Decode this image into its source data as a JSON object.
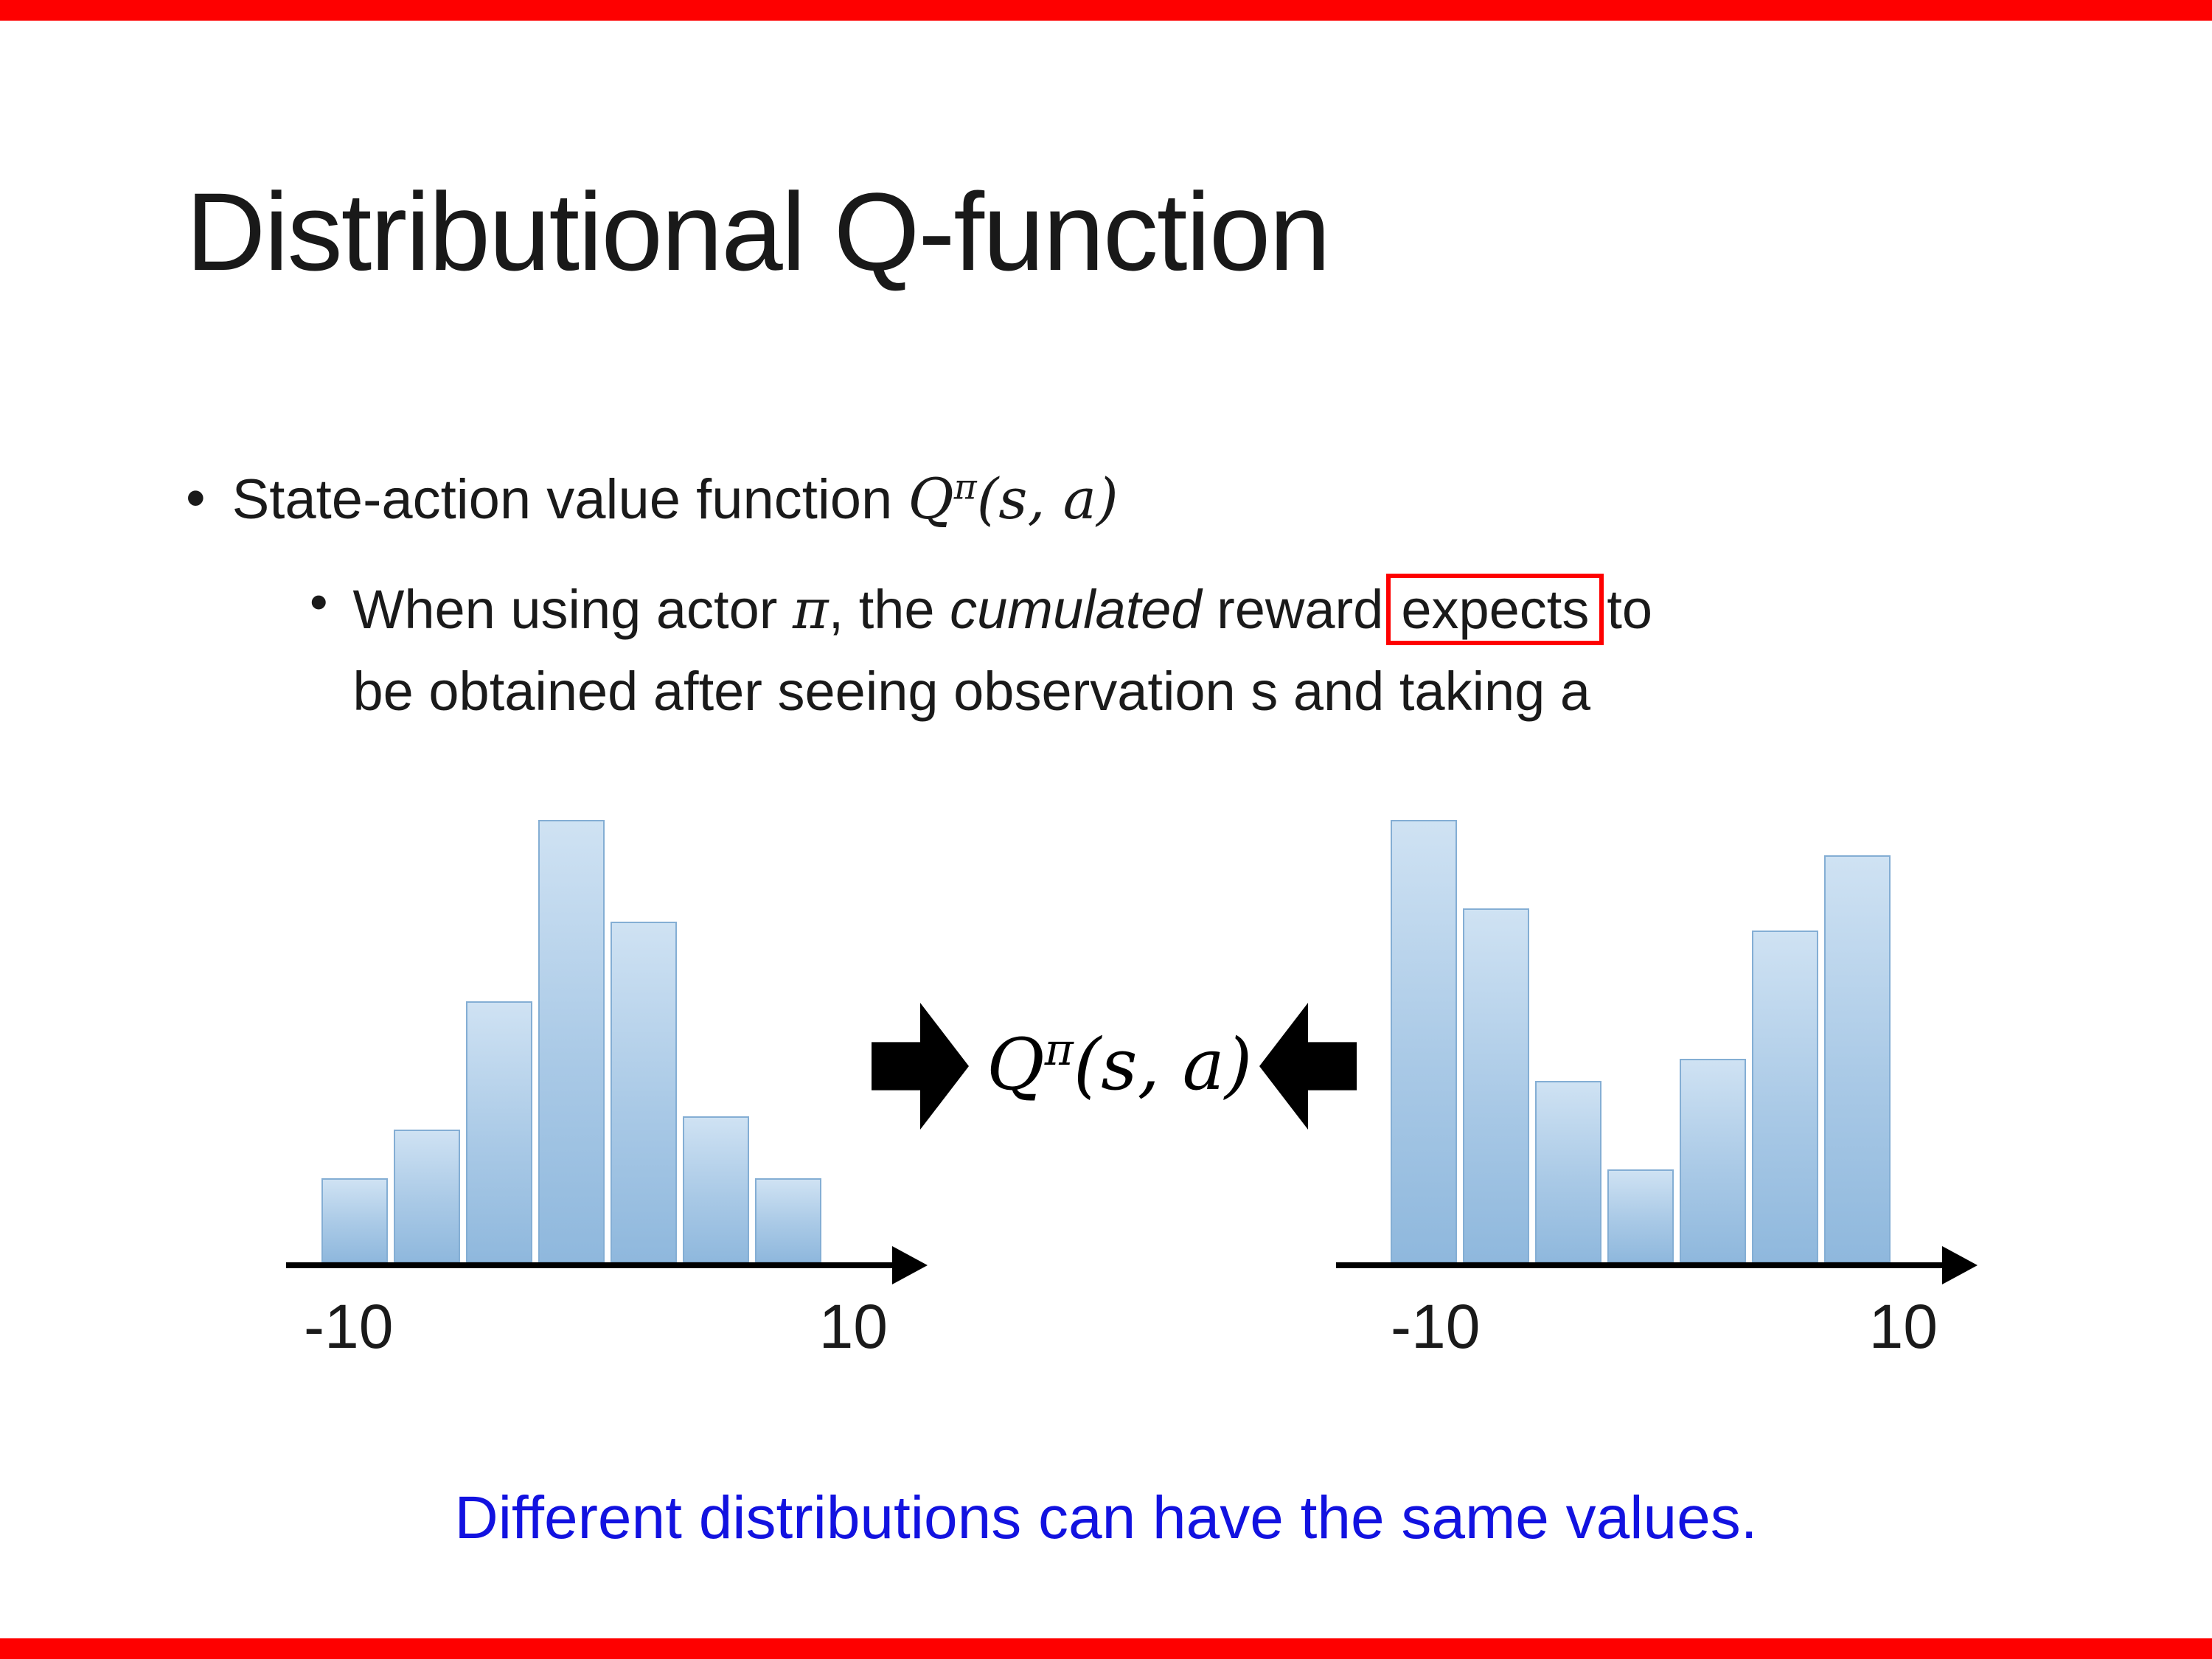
{
  "slide": {
    "title": "Distributional Q-function",
    "bullet_char": "•",
    "accent_red": "#fe0000",
    "note_blue": "#1212e0",
    "bottom_note": "Different distributions can have the same values."
  },
  "bullet1": {
    "intro": "State-action value function ",
    "formula": {
      "base": "Q",
      "sup": "π",
      "args": "(s, a)"
    }
  },
  "sub_bullet": {
    "seg1": "When using actor ",
    "pi": "π",
    "seg2": ", the ",
    "cumulated": "cumulated",
    "seg3": " reward",
    "boxed": "expects",
    "seg4": "to",
    "line2": "be obtained after seeing observation s and taking a"
  },
  "center": {
    "formula": {
      "base": "Q",
      "sup": "π",
      "args": "(s, a)"
    }
  },
  "chart_data": [
    {
      "type": "bar",
      "title": "unimodal return distribution",
      "categories": [
        "b1",
        "b2",
        "b3",
        "b4",
        "b5",
        "b6",
        "b7"
      ],
      "values": [
        0.19,
        0.3,
        0.59,
        1.0,
        0.77,
        0.33,
        0.19
      ],
      "value_note": "relative bar heights (no y-axis shown)",
      "x_tick_labels": [
        "-10",
        "10"
      ],
      "xlim": [
        -10,
        10
      ],
      "grid": false,
      "legend": false,
      "bar_color_top": "#cfe2f3",
      "bar_color_bottom": "#8fb8dd",
      "bar_border": "#84aed4"
    },
    {
      "type": "bar",
      "title": "bimodal return distribution",
      "categories": [
        "b1",
        "b2",
        "b3",
        "b4",
        "b5",
        "b6",
        "b7"
      ],
      "values": [
        1.0,
        0.8,
        0.41,
        0.21,
        0.46,
        0.75,
        0.92
      ],
      "value_note": "relative bar heights (no y-axis shown)",
      "x_tick_labels": [
        "-10",
        "10"
      ],
      "xlim": [
        -10,
        10
      ],
      "grid": false,
      "legend": false,
      "bar_color_top": "#cfe2f3",
      "bar_color_bottom": "#8fb8dd",
      "bar_border": "#84aed4"
    }
  ]
}
